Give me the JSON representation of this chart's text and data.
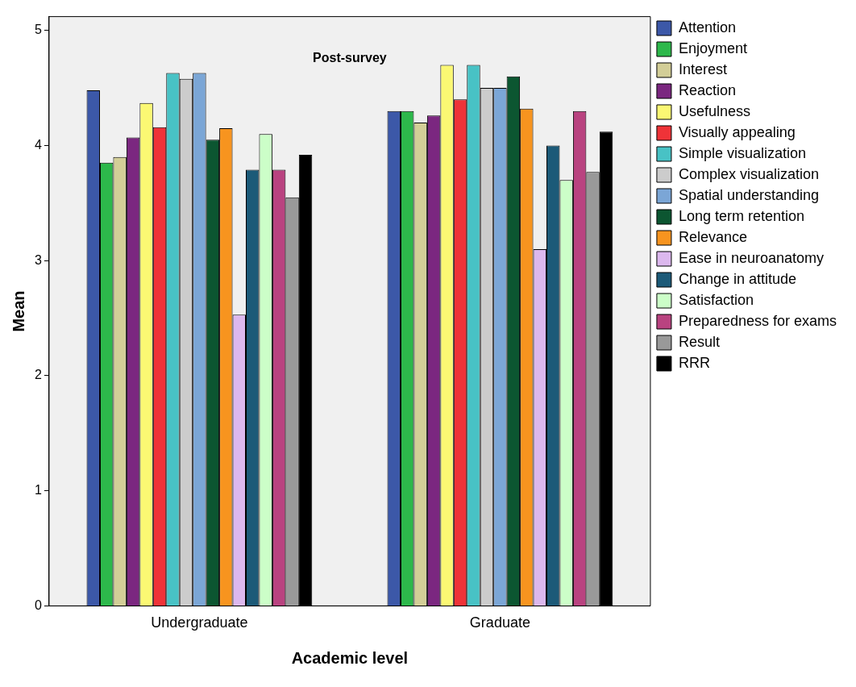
{
  "chart_data": {
    "type": "bar",
    "title": "Post-survey",
    "xlabel": "Academic level",
    "ylabel": "Mean",
    "categories": [
      "Undergraduate",
      "Graduate"
    ],
    "series": [
      {
        "name": "Attention",
        "color": "#3c58a8",
        "values": [
          4.48,
          4.3
        ]
      },
      {
        "name": "Enjoyment",
        "color": "#2db84b",
        "values": [
          3.85,
          4.3
        ]
      },
      {
        "name": "Interest",
        "color": "#d3ce97",
        "values": [
          3.9,
          4.2
        ]
      },
      {
        "name": "Reaction",
        "color": "#7b2780",
        "values": [
          4.07,
          4.26
        ]
      },
      {
        "name": "Usefulness",
        "color": "#fbf873",
        "values": [
          4.37,
          4.7
        ]
      },
      {
        "name": "Visually appealing",
        "color": "#ef3338",
        "values": [
          4.16,
          4.4
        ]
      },
      {
        "name": "Simple visualization",
        "color": "#48c2c5",
        "values": [
          4.63,
          4.7
        ]
      },
      {
        "name": "Complex visualization",
        "color": "#cccccc",
        "values": [
          4.58,
          4.5
        ]
      },
      {
        "name": "Spatial understanding",
        "color": "#7ba6d6",
        "values": [
          4.63,
          4.5
        ]
      },
      {
        "name": "Long term retention",
        "color": "#0c5631",
        "values": [
          4.05,
          4.6
        ]
      },
      {
        "name": "Relevance",
        "color": "#f7941f",
        "values": [
          4.15,
          4.32
        ]
      },
      {
        "name": "Ease in neuroanatomy",
        "color": "#dcb8ee",
        "values": [
          2.53,
          3.1
        ]
      },
      {
        "name": "Change in attitude",
        "color": "#1c5a78",
        "values": [
          3.79,
          4.0
        ]
      },
      {
        "name": "Satisfaction",
        "color": "#ccfec8",
        "values": [
          4.1,
          3.7
        ]
      },
      {
        "name": "Preparedness for exams",
        "color": "#b94380",
        "values": [
          3.79,
          4.3
        ]
      },
      {
        "name": "Result",
        "color": "#999999",
        "values": [
          3.55,
          3.77
        ]
      },
      {
        "name": "RRR",
        "color": "#000000",
        "values": [
          3.92,
          4.12
        ]
      }
    ],
    "ylim": [
      0,
      5.12
    ],
    "yticks": [
      0,
      1,
      2,
      3,
      4,
      5
    ],
    "grid": false,
    "legend": "right"
  }
}
